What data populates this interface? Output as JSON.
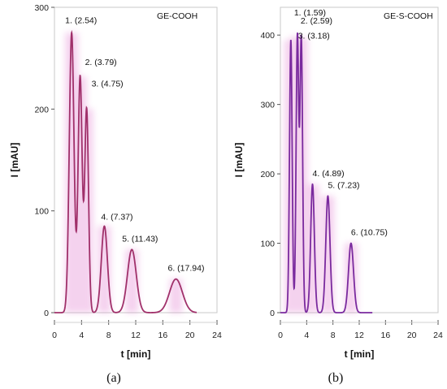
{
  "chart_data": [
    {
      "type": "line",
      "title": "GE-COOH",
      "caption": "(a)",
      "xlabel": "t [min]",
      "ylabel": "I [mAU]",
      "xlim": [
        0,
        24
      ],
      "ylim": [
        0,
        300
      ],
      "xticks": [
        0,
        4,
        8,
        12,
        16,
        20,
        24
      ],
      "yticks": [
        0,
        100,
        200,
        300
      ],
      "color": "#a0306a",
      "end_time": 21,
      "peaks": [
        {
          "label": "1. (2.54)",
          "t": 2.54,
          "height": 275,
          "width": 0.35
        },
        {
          "label": "2. (3.79)",
          "t": 3.79,
          "height": 232,
          "width": 0.3
        },
        {
          "label": "3. (4.75)",
          "t": 4.75,
          "height": 200,
          "width": 0.28
        },
        {
          "label": "4. (7.37)",
          "t": 7.37,
          "height": 85,
          "width": 0.45
        },
        {
          "label": "5. (11.43)",
          "t": 11.43,
          "height": 62,
          "width": 0.65
        },
        {
          "label": "6. (17.94)",
          "t": 17.94,
          "height": 33,
          "width": 0.95
        }
      ]
    },
    {
      "type": "line",
      "title": "GE-S-COOH",
      "caption": "(b)",
      "xlabel": "t [min]",
      "ylabel": "I [mAU]",
      "xlim": [
        0,
        24
      ],
      "ylim": [
        0,
        440
      ],
      "xticks": [
        0,
        4,
        8,
        12,
        16,
        20,
        24
      ],
      "yticks": [
        0,
        100,
        200,
        300,
        400
      ],
      "color": "#7a2a9e",
      "end_time": 14,
      "peaks": [
        {
          "label": "1. (1.59)",
          "t": 1.59,
          "height": 393,
          "width": 0.2
        },
        {
          "label": "2. (2.59)",
          "t": 2.59,
          "height": 398,
          "width": 0.2
        },
        {
          "label": "3. (3.18)",
          "t": 3.18,
          "height": 395,
          "width": 0.2
        },
        {
          "label": "4. (4.89)",
          "t": 4.89,
          "height": 185,
          "width": 0.28
        },
        {
          "label": "5. (7.23)",
          "t": 7.23,
          "height": 168,
          "width": 0.32
        },
        {
          "label": "6. (10.75)",
          "t": 10.75,
          "height": 100,
          "width": 0.38
        }
      ]
    }
  ]
}
